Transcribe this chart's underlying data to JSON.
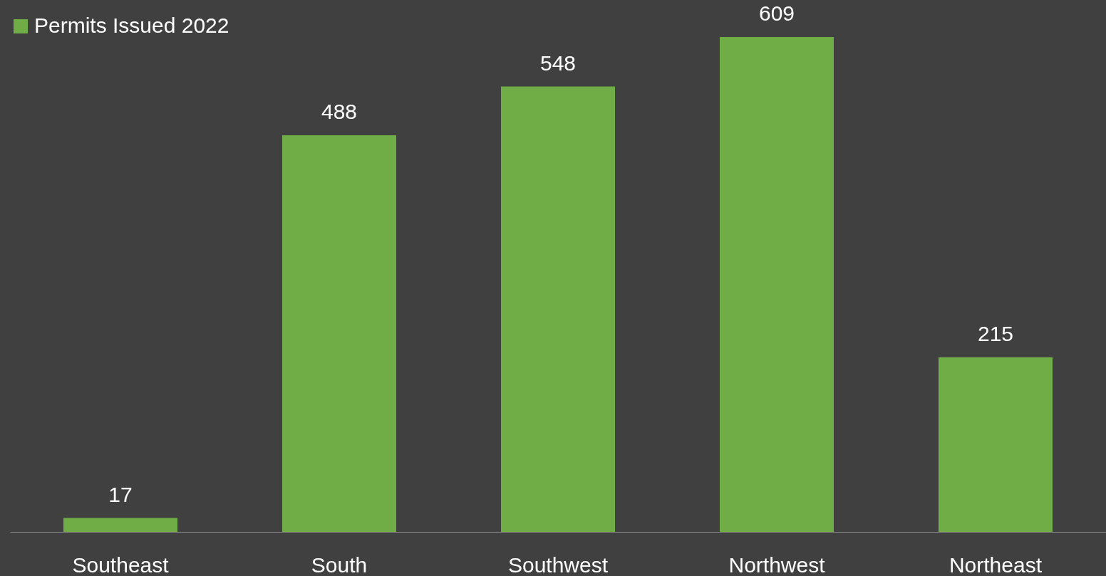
{
  "chart_data": {
    "type": "bar",
    "categories": [
      "Southeast",
      "South",
      "Southwest",
      "Northwest",
      "Northeast"
    ],
    "series": [
      {
        "name": "Permits Issued 2022",
        "color": "#70ad47",
        "values": [
          17,
          488,
          548,
          609,
          215
        ]
      }
    ],
    "data_labels": true,
    "legend": "top",
    "grid": false
  }
}
